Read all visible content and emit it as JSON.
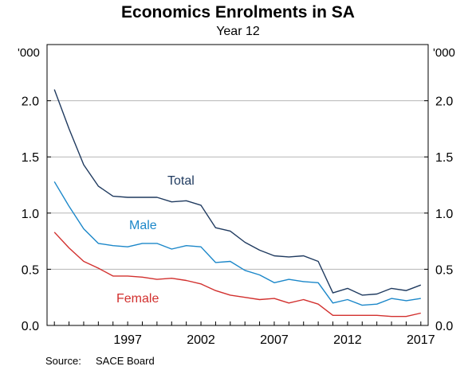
{
  "chart_data": {
    "type": "line",
    "title": "Economics Enrolments in SA",
    "subtitle": "Year 12",
    "y_unit_left": "'000",
    "y_unit_right": "'000",
    "ylim": [
      0,
      2.5
    ],
    "y_ticks": [
      0.0,
      0.5,
      1.0,
      1.5,
      2.0
    ],
    "y_tick_labels": [
      "0.0",
      "0.5",
      "1.0",
      "1.5",
      "2.0"
    ],
    "xlim": [
      1991.5,
      2017.5
    ],
    "x_tick_labels": [
      "1997",
      "2002",
      "2007",
      "2012",
      "2017"
    ],
    "x_tick_values": [
      1997,
      2002,
      2007,
      2012,
      2017
    ],
    "grid": true,
    "x": [
      1992,
      1993,
      1994,
      1995,
      1996,
      1997,
      1998,
      1999,
      2000,
      2001,
      2002,
      2003,
      2004,
      2005,
      2006,
      2007,
      2008,
      2009,
      2010,
      2011,
      2012,
      2013,
      2014,
      2015,
      2016,
      2017
    ],
    "series": [
      {
        "name": "Total",
        "color": "#1f3a5f",
        "values": [
          2.1,
          1.75,
          1.43,
          1.24,
          1.15,
          1.14,
          1.14,
          1.14,
          1.1,
          1.11,
          1.07,
          0.87,
          0.84,
          0.74,
          0.67,
          0.62,
          0.61,
          0.62,
          0.57,
          0.29,
          0.33,
          0.27,
          0.28,
          0.33,
          0.31,
          0.36
        ]
      },
      {
        "name": "Male",
        "color": "#1b87c9",
        "values": [
          1.28,
          1.06,
          0.86,
          0.73,
          0.71,
          0.7,
          0.73,
          0.73,
          0.68,
          0.71,
          0.7,
          0.56,
          0.57,
          0.49,
          0.45,
          0.38,
          0.41,
          0.39,
          0.38,
          0.2,
          0.23,
          0.18,
          0.19,
          0.24,
          0.22,
          0.24
        ]
      },
      {
        "name": "Female",
        "color": "#d2302e",
        "values": [
          0.83,
          0.69,
          0.57,
          0.51,
          0.44,
          0.44,
          0.43,
          0.41,
          0.42,
          0.4,
          0.37,
          0.31,
          0.27,
          0.25,
          0.23,
          0.24,
          0.2,
          0.23,
          0.19,
          0.09,
          0.09,
          0.09,
          0.09,
          0.08,
          0.08,
          0.11
        ]
      }
    ],
    "source_label": "Source:",
    "source_value": "SACE Board"
  }
}
